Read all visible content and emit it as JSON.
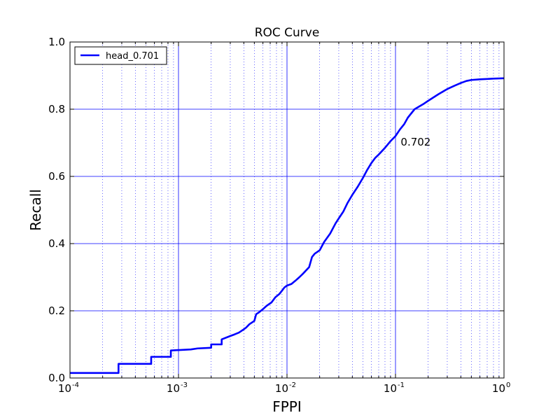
{
  "chart_data": {
    "type": "line",
    "title": "ROC Curve",
    "xlabel": "FPPI",
    "ylabel": "Recall",
    "x_scale": "log",
    "xlim": [
      0.0001,
      1
    ],
    "ylim": [
      0.0,
      1.0
    ],
    "x_ticks": [
      {
        "base": "10",
        "exp": "-4",
        "value": 0.0001
      },
      {
        "base": "10",
        "exp": "-3",
        "value": 0.001
      },
      {
        "base": "10",
        "exp": "-2",
        "value": 0.01
      },
      {
        "base": "10",
        "exp": "-1",
        "value": 0.1
      },
      {
        "base": "10",
        "exp": "0",
        "value": 1
      }
    ],
    "y_ticks": [
      "0.0",
      "0.2",
      "0.4",
      "0.6",
      "0.8",
      "1.0"
    ],
    "grid": "major solid, minor dotted (x)",
    "legend_position": "top-left",
    "series": [
      {
        "name": "head_0.701",
        "color": "#0000ff",
        "x": [
          0.0001,
          0.00028,
          0.00028,
          0.00056,
          0.00056,
          0.00085,
          0.00085,
          0.0013,
          0.0015,
          0.002,
          0.002,
          0.0025,
          0.0025,
          0.003,
          0.0033,
          0.0036,
          0.004,
          0.0042,
          0.0045,
          0.005,
          0.0052,
          0.0055,
          0.006,
          0.0065,
          0.0072,
          0.0078,
          0.0085,
          0.009,
          0.0095,
          0.01,
          0.011,
          0.012,
          0.013,
          0.014,
          0.016,
          0.017,
          0.018,
          0.02,
          0.022,
          0.025,
          0.028,
          0.03,
          0.033,
          0.036,
          0.04,
          0.045,
          0.05,
          0.055,
          0.06,
          0.065,
          0.07,
          0.08,
          0.09,
          0.1,
          0.11,
          0.12,
          0.13,
          0.15,
          0.18,
          0.2,
          0.25,
          0.3,
          0.35,
          0.4,
          0.45,
          0.5,
          0.6,
          0.7,
          0.8,
          1.0
        ],
        "y": [
          0.015,
          0.015,
          0.042,
          0.042,
          0.063,
          0.063,
          0.082,
          0.085,
          0.088,
          0.09,
          0.1,
          0.1,
          0.115,
          0.125,
          0.13,
          0.135,
          0.145,
          0.15,
          0.16,
          0.17,
          0.19,
          0.195,
          0.205,
          0.215,
          0.225,
          0.24,
          0.25,
          0.26,
          0.27,
          0.275,
          0.28,
          0.29,
          0.3,
          0.31,
          0.33,
          0.36,
          0.37,
          0.38,
          0.405,
          0.43,
          0.46,
          0.475,
          0.495,
          0.52,
          0.545,
          0.57,
          0.595,
          0.62,
          0.64,
          0.655,
          0.665,
          0.685,
          0.705,
          0.72,
          0.74,
          0.755,
          0.775,
          0.8,
          0.815,
          0.825,
          0.845,
          0.86,
          0.87,
          0.878,
          0.884,
          0.887,
          0.889,
          0.89,
          0.891,
          0.892
        ]
      }
    ],
    "annotations": [
      {
        "text": "0.702",
        "x": 0.11,
        "y": 0.702
      }
    ]
  }
}
